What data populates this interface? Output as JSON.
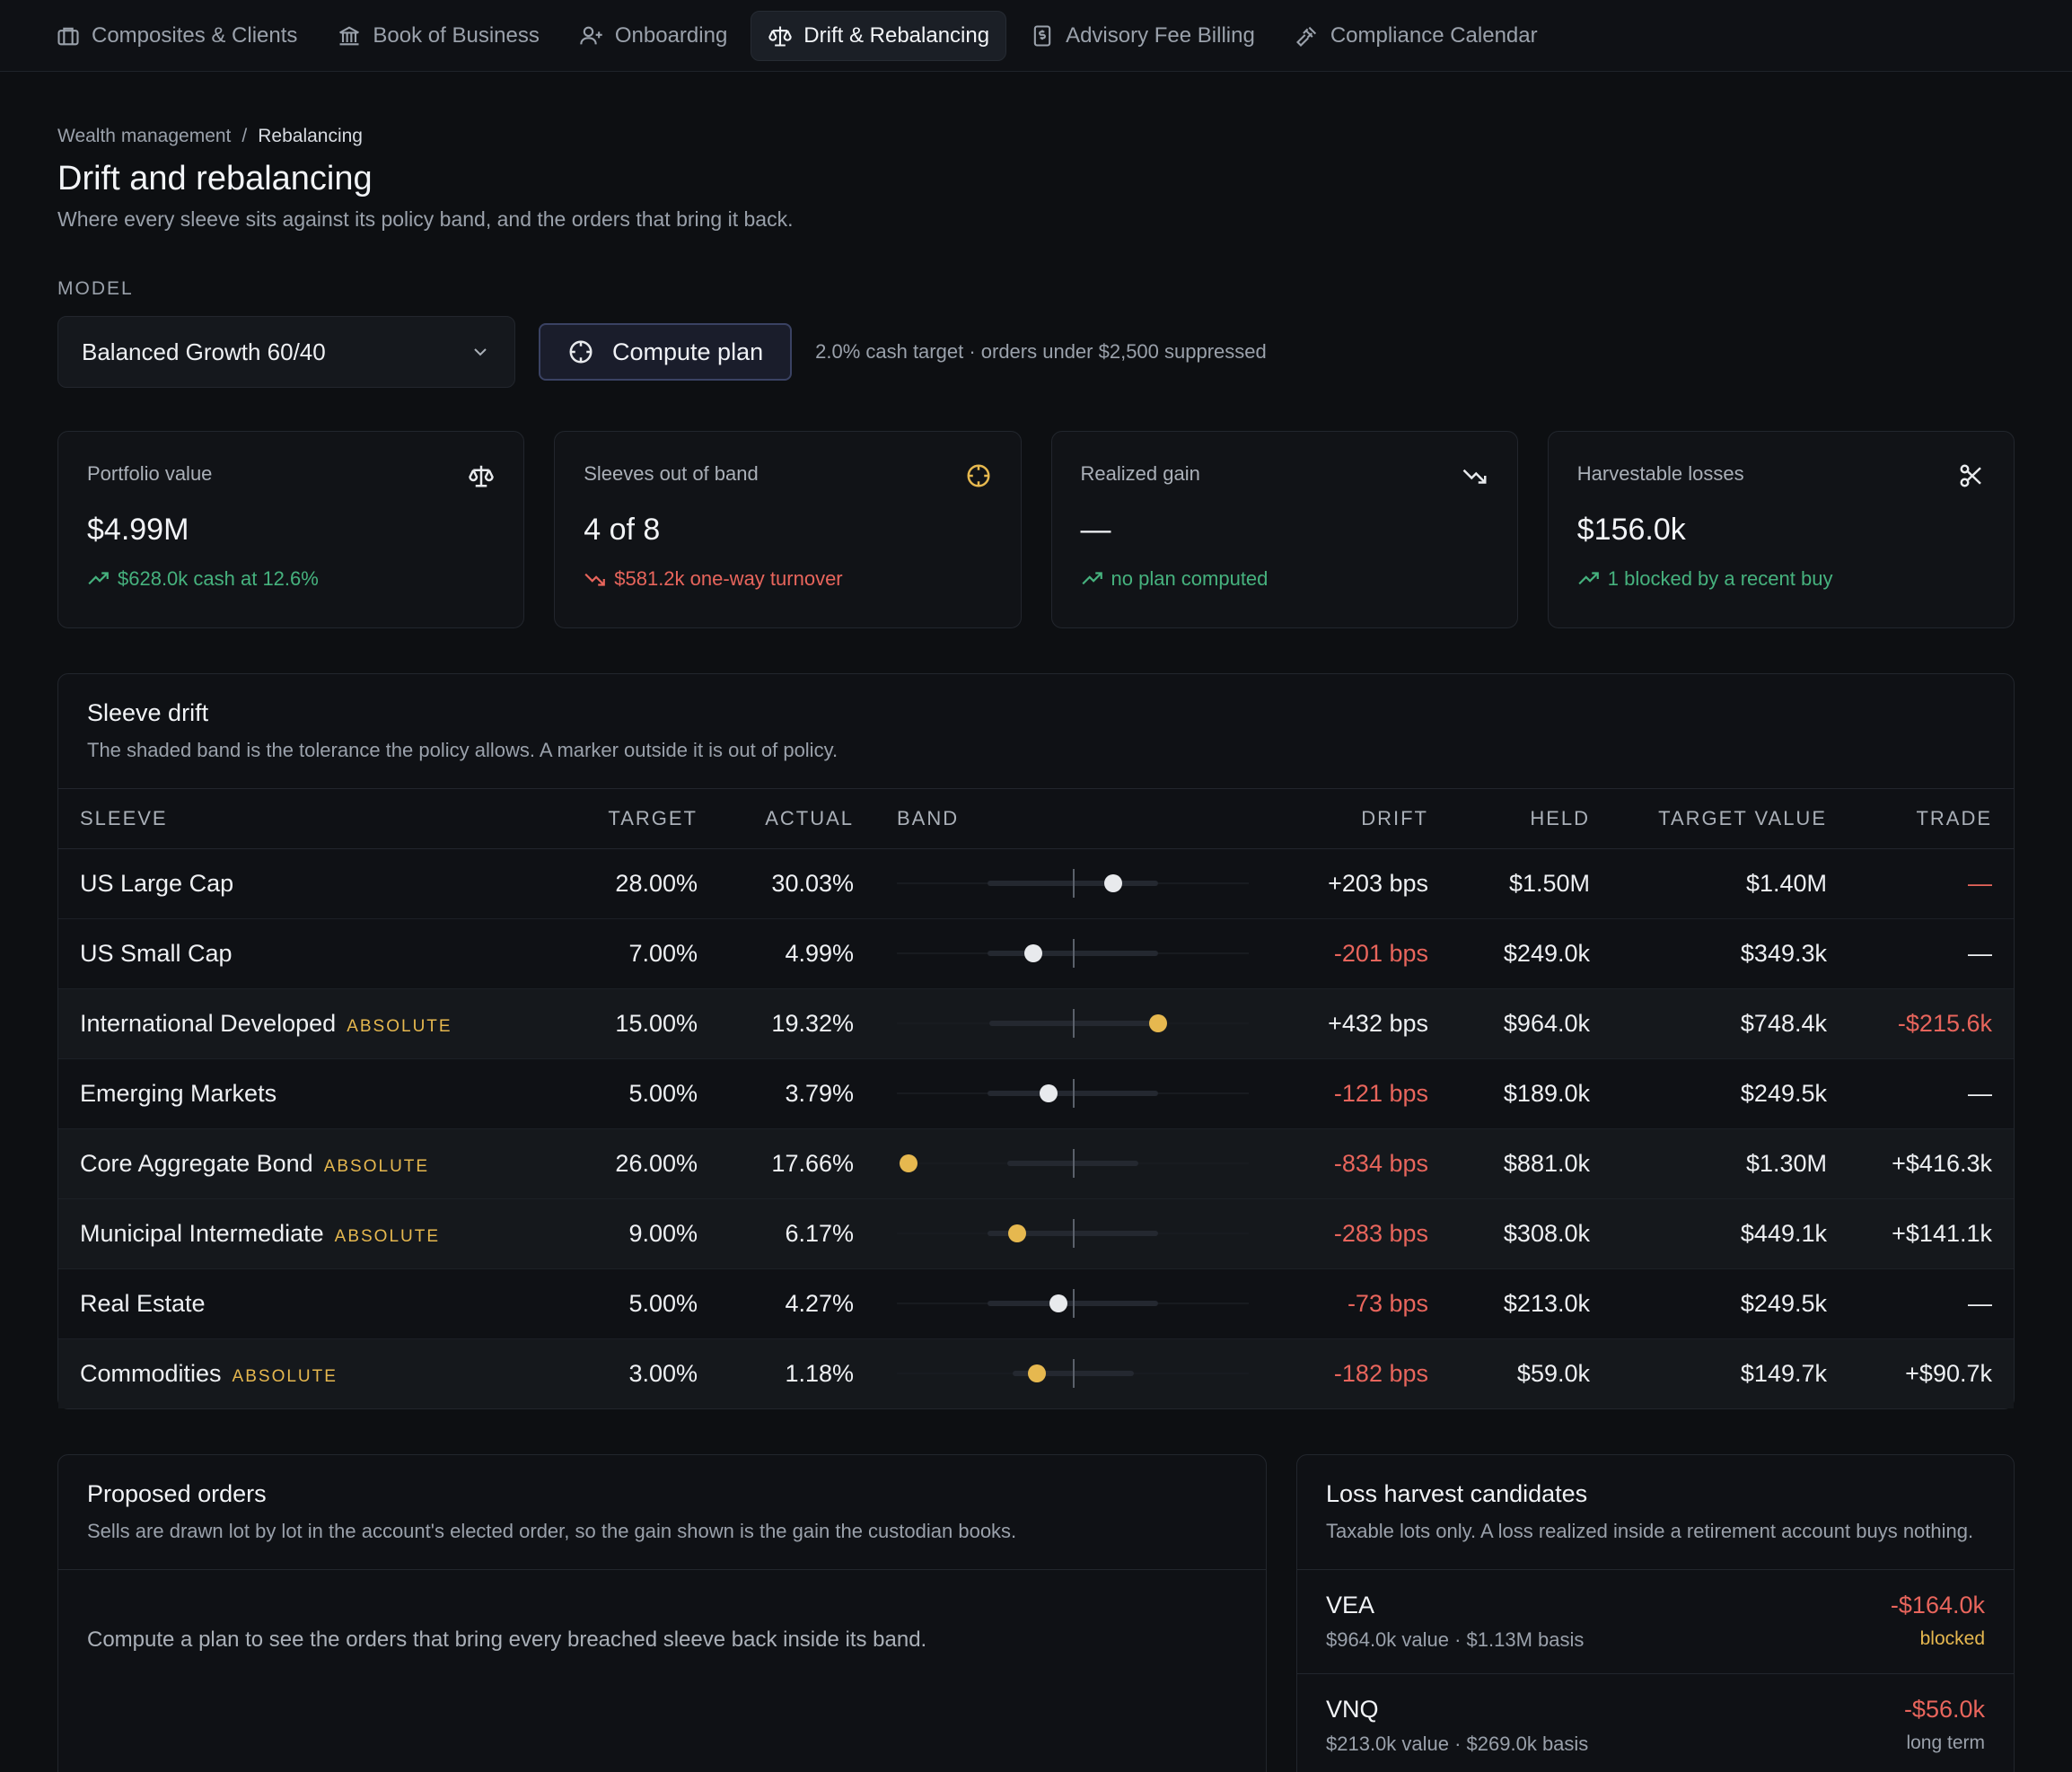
{
  "nav": [
    {
      "label": "Composites & Clients",
      "icon": "briefcase-icon"
    },
    {
      "label": "Book of Business",
      "icon": "bank-icon"
    },
    {
      "label": "Onboarding",
      "icon": "user-plus-icon"
    },
    {
      "label": "Drift & Rebalancing",
      "icon": "scale-icon",
      "active": true
    },
    {
      "label": "Advisory Fee Billing",
      "icon": "receipt-icon"
    },
    {
      "label": "Compliance Calendar",
      "icon": "gavel-icon"
    }
  ],
  "breadcrumb": {
    "parent": "Wealth management",
    "sep": "/",
    "current": "Rebalancing"
  },
  "title": "Drift and rebalancing",
  "subtitle": "Where every sleeve sits against its policy band, and the orders that bring it back.",
  "model": {
    "label": "MODEL",
    "selected": "Balanced Growth 60/40",
    "compute_label": "Compute plan",
    "hint": "2.0% cash target · orders under $2,500 suppressed"
  },
  "stats": [
    {
      "label": "Portfolio value",
      "value": "$4.99M",
      "foot": "$628.0k cash at 12.6%",
      "tone": "green",
      "icon": "scale-icon"
    },
    {
      "label": "Sleeves out of band",
      "value": "4 of 8",
      "foot": "$581.2k one-way turnover",
      "tone": "red",
      "icon": "crosshair-icon"
    },
    {
      "label": "Realized gain",
      "value": "—",
      "foot": "no plan computed",
      "tone": "green",
      "icon": "trending-down-icon"
    },
    {
      "label": "Harvestable losses",
      "value": "$156.0k",
      "foot": "1 blocked by a recent buy",
      "tone": "green",
      "icon": "scissors-icon"
    }
  ],
  "drift": {
    "title": "Sleeve drift",
    "subtitle": "The shaded band is the tolerance the policy allows. A marker outside it is out of policy.",
    "columns": [
      "SLEEVE",
      "TARGET",
      "ACTUAL",
      "BAND",
      "DRIFT",
      "HELD",
      "TARGET VALUE",
      "TRADE"
    ],
    "colors": {
      "in_band": "#e8eaed",
      "out_of_band": "#e6b84f"
    },
    "rows": [
      {
        "sleeve": "US Large Cap",
        "tag": "",
        "target": "28.00%",
        "actual": "30.03%",
        "drift": "+203 bps",
        "drift_bps": 203,
        "band_bps": 250,
        "held": "$1.50M",
        "target_value": "$1.40M",
        "trade": "—",
        "trade_tone": "red",
        "out": false
      },
      {
        "sleeve": "US Small Cap",
        "tag": "",
        "target": "7.00%",
        "actual": "4.99%",
        "drift": "-201 bps",
        "drift_bps": -201,
        "band_bps": 250,
        "held": "$249.0k",
        "target_value": "$349.3k",
        "trade": "—",
        "trade_tone": "plain",
        "out": false
      },
      {
        "sleeve": "International Developed",
        "tag": "ABSOLUTE",
        "target": "15.00%",
        "actual": "19.32%",
        "drift": "+432 bps",
        "drift_bps": 432,
        "band_bps": 240,
        "held": "$964.0k",
        "target_value": "$748.4k",
        "trade": "-$215.6k",
        "trade_tone": "red",
        "out": true
      },
      {
        "sleeve": "Emerging Markets",
        "tag": "",
        "target": "5.00%",
        "actual": "3.79%",
        "drift": "-121 bps",
        "drift_bps": -121,
        "band_bps": 250,
        "held": "$189.0k",
        "target_value": "$249.5k",
        "trade": "—",
        "trade_tone": "plain",
        "out": false
      },
      {
        "sleeve": "Core Aggregate Bond",
        "tag": "ABSOLUTE",
        "target": "26.00%",
        "actual": "17.66%",
        "drift": "-834 bps",
        "drift_bps": -834,
        "band_bps": 150,
        "held": "$881.0k",
        "target_value": "$1.30M",
        "trade": "+$416.3k",
        "trade_tone": "plain",
        "out": true
      },
      {
        "sleeve": "Municipal Intermediate",
        "tag": "ABSOLUTE",
        "target": "9.00%",
        "actual": "6.17%",
        "drift": "-283 bps",
        "drift_bps": -283,
        "band_bps": 250,
        "held": "$308.0k",
        "target_value": "$449.1k",
        "trade": "+$141.1k",
        "trade_tone": "plain",
        "out": true
      },
      {
        "sleeve": "Real Estate",
        "tag": "",
        "target": "5.00%",
        "actual": "4.27%",
        "drift": "-73 bps",
        "drift_bps": -73,
        "band_bps": 250,
        "held": "$213.0k",
        "target_value": "$249.5k",
        "trade": "—",
        "trade_tone": "plain",
        "out": false
      },
      {
        "sleeve": "Commodities",
        "tag": "ABSOLUTE",
        "target": "3.00%",
        "actual": "1.18%",
        "drift": "-182 bps",
        "drift_bps": -182,
        "band_bps": 125,
        "held": "$59.0k",
        "target_value": "$149.7k",
        "trade": "+$90.7k",
        "trade_tone": "plain",
        "out": true
      }
    ]
  },
  "orders": {
    "title": "Proposed orders",
    "subtitle": "Sells are drawn lot by lot in the account's elected order, so the gain shown is the gain the custodian books.",
    "empty": "Compute a plan to see the orders that bring every breached sleeve back inside its band."
  },
  "harvest": {
    "title": "Loss harvest candidates",
    "subtitle": "Taxable lots only. A loss realized inside a retirement account buys nothing.",
    "items": [
      {
        "ticker": "VEA",
        "meta": "$964.0k value · $1.13M basis",
        "loss": "-$164.0k",
        "status": "blocked",
        "status_tone": "amber"
      },
      {
        "ticker": "VNQ",
        "meta": "$213.0k value · $269.0k basis",
        "loss": "-$56.0k",
        "status": "long term",
        "status_tone": "muted"
      }
    ]
  }
}
